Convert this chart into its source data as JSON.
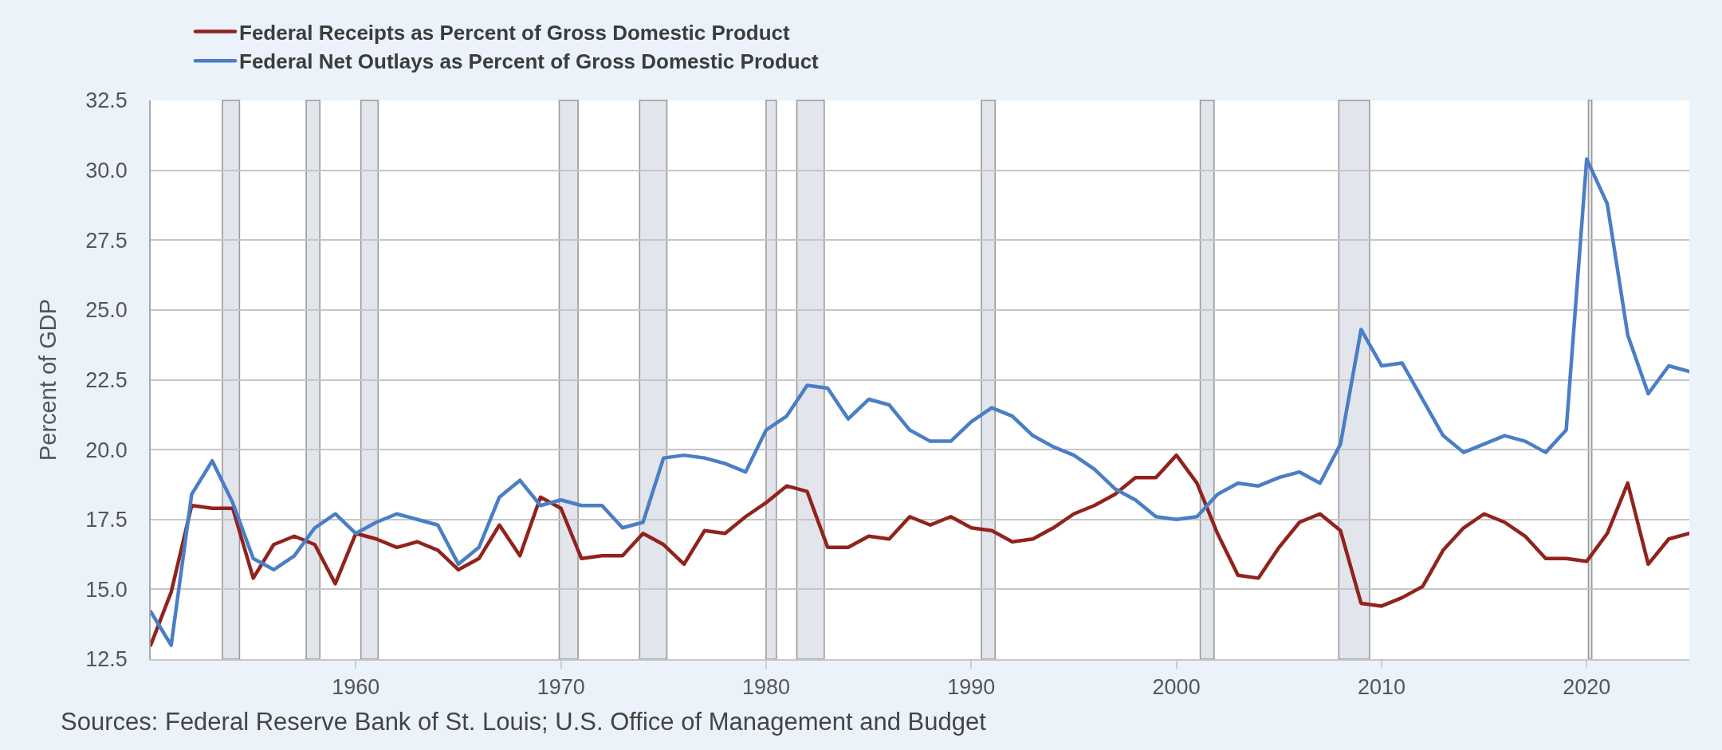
{
  "chart_data": {
    "type": "line",
    "ylabel": "Percent of GDP",
    "annotations": [
      "Sources: Federal Reserve Bank of St. Louis; U.S. Office of Management and Budget"
    ],
    "x": [
      "1950",
      "1951",
      "1952",
      "1953",
      "1954",
      "1955",
      "1956",
      "1957",
      "1958",
      "1959",
      "1960",
      "1961",
      "1962",
      "1963",
      "1964",
      "1965",
      "1966",
      "1967",
      "1968",
      "1969",
      "1970",
      "1971",
      "1972",
      "1973",
      "1974",
      "1975",
      "1976",
      "1977",
      "1978",
      "1979",
      "1980",
      "1981",
      "1982",
      "1983",
      "1984",
      "1985",
      "1986",
      "1987",
      "1988",
      "1989",
      "1990",
      "1991",
      "1992",
      "1993",
      "1994",
      "1995",
      "1996",
      "1997",
      "1998",
      "1999",
      "2000",
      "2001",
      "2002",
      "2003",
      "2004",
      "2005",
      "2006",
      "2007",
      "2008",
      "2009",
      "2010",
      "2011",
      "2012",
      "2013",
      "2014",
      "2015",
      "2016",
      "2017",
      "2018",
      "2019",
      "2020",
      "2021",
      "2022",
      "2023",
      "2024",
      "2025"
    ],
    "series": [
      {
        "name": "Federal Receipts as Percent of Gross Domestic Product",
        "color": "#91231c",
        "values": [
          13.0,
          14.9,
          18.0,
          17.9,
          17.9,
          15.4,
          16.6,
          16.9,
          16.6,
          15.2,
          17.0,
          16.8,
          16.5,
          16.7,
          16.4,
          15.7,
          16.1,
          17.3,
          16.2,
          18.3,
          17.9,
          16.1,
          16.2,
          16.2,
          17.0,
          16.6,
          15.9,
          17.1,
          17.0,
          17.6,
          18.1,
          18.7,
          18.5,
          16.5,
          16.5,
          16.9,
          16.8,
          17.6,
          17.3,
          17.6,
          17.2,
          17.1,
          16.7,
          16.8,
          17.2,
          17.7,
          18.0,
          18.4,
          19.0,
          19.0,
          19.8,
          18.8,
          17.0,
          15.5,
          15.4,
          16.5,
          17.4,
          17.7,
          17.1,
          14.5,
          14.4,
          14.7,
          15.1,
          16.4,
          17.2,
          17.7,
          17.4,
          16.9,
          16.1,
          16.1,
          16.0,
          17.0,
          18.8,
          15.9,
          16.8,
          17.0
        ]
      },
      {
        "name": "Federal Net Outlays as Percent of Gross Domestic Product",
        "color": "#4a7ec6",
        "values": [
          14.2,
          13.0,
          18.4,
          19.6,
          18.1,
          16.1,
          15.7,
          16.2,
          17.2,
          17.7,
          17.0,
          17.4,
          17.7,
          17.5,
          17.3,
          15.9,
          16.5,
          18.3,
          18.9,
          18.0,
          18.2,
          18.0,
          18.0,
          17.2,
          17.4,
          19.7,
          19.8,
          19.7,
          19.5,
          19.2,
          20.7,
          21.2,
          22.3,
          22.2,
          21.1,
          21.8,
          21.6,
          20.7,
          20.3,
          20.3,
          21.0,
          21.5,
          21.2,
          20.5,
          20.1,
          19.8,
          19.3,
          18.6,
          18.2,
          17.6,
          17.5,
          17.6,
          18.4,
          18.8,
          18.7,
          19.0,
          19.2,
          18.8,
          20.2,
          24.3,
          23.0,
          23.1,
          21.8,
          20.5,
          19.9,
          20.2,
          20.5,
          20.3,
          19.9,
          20.7,
          30.4,
          28.8,
          24.1,
          22.0,
          23.0,
          22.8
        ]
      }
    ],
    "xlim": [
      "1950",
      "2025"
    ],
    "xticks": [
      "1960",
      "1970",
      "1980",
      "1990",
      "2000",
      "2010",
      "2020"
    ],
    "ylim": [
      12.5,
      32.5
    ],
    "yticks": [
      12.5,
      {
        "value": 15,
        "label": "15.0"
      },
      17.5,
      {
        "value": 20,
        "label": "20.0"
      },
      22.5,
      {
        "value": 25,
        "label": "25.0"
      },
      27.5,
      {
        "value": 30,
        "label": "30.0"
      },
      32.5
    ],
    "bands": [
      {
        "axis": "x",
        "from": "1953-07",
        "to": "1954-05",
        "color": "#e2e5eb"
      },
      {
        "axis": "x",
        "from": "1957-08",
        "to": "1958-04",
        "color": "#e2e5eb"
      },
      {
        "axis": "x",
        "from": "1960-04",
        "to": "1961-02",
        "color": "#e2e5eb"
      },
      {
        "axis": "x",
        "from": "1969-12",
        "to": "1970-11",
        "color": "#e2e5eb"
      },
      {
        "axis": "x",
        "from": "1973-11",
        "to": "1975-03",
        "color": "#e2e5eb"
      },
      {
        "axis": "x",
        "from": "1980-01",
        "to": "1980-07",
        "color": "#e2e5eb"
      },
      {
        "axis": "x",
        "from": "1981-07",
        "to": "1982-11",
        "color": "#e2e5eb"
      },
      {
        "axis": "x",
        "from": "1990-07",
        "to": "1991-03",
        "color": "#e2e5eb"
      },
      {
        "axis": "x",
        "from": "2001-03",
        "to": "2001-11",
        "color": "#e2e5eb"
      },
      {
        "axis": "x",
        "from": "2007-12",
        "to": "2009-06",
        "color": "#e2e5eb"
      },
      {
        "axis": "x",
        "from": "2020-02",
        "to": "2020-04",
        "color": "#e2e5eb"
      }
    ],
    "grid": "y",
    "legend": "top left",
    "line_style": "solid"
  }
}
